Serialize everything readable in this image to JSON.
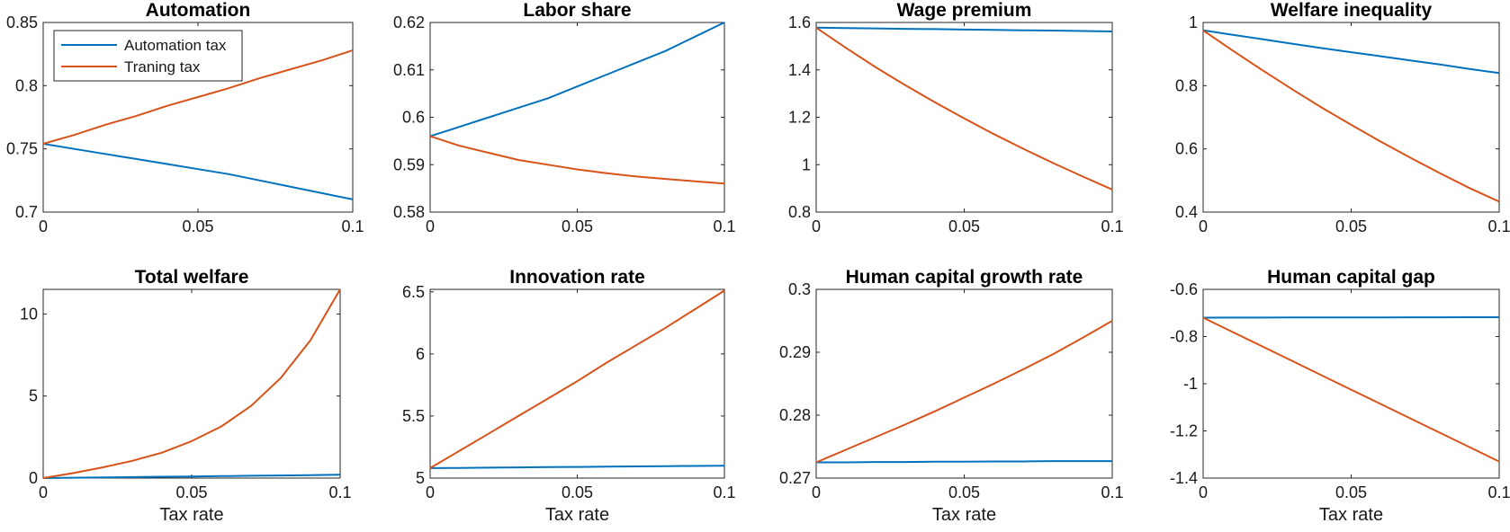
{
  "figure": {
    "legend": {
      "placement": "top-left of first panel",
      "entries": [
        "Automation tax",
        "Traning tax"
      ]
    },
    "series_colors": [
      "#0072BD",
      "#D95319"
    ]
  },
  "chart_data": [
    {
      "type": "line",
      "title": "Automation",
      "xlabel": "",
      "ylabel": "",
      "xlim": [
        0,
        0.1
      ],
      "ylim": [
        0.7,
        0.85
      ],
      "xticks": [
        0,
        0.05,
        0.1
      ],
      "xtick_labels": [
        "0",
        "0.05",
        "0.1"
      ],
      "yticks": [
        0.7,
        0.75,
        0.8,
        0.85
      ],
      "ytick_labels": [
        "0.7",
        "0.75",
        "0.8",
        "0.85"
      ],
      "x": [
        0,
        0.01,
        0.02,
        0.03,
        0.04,
        0.05,
        0.06,
        0.07,
        0.08,
        0.09,
        0.1
      ],
      "series": [
        {
          "name": "Automation tax",
          "color": "#0072BD",
          "values": [
            0.754,
            0.75,
            0.746,
            0.742,
            0.738,
            0.734,
            0.73,
            0.725,
            0.72,
            0.715,
            0.71
          ]
        },
        {
          "name": "Traning tax",
          "color": "#D95319",
          "values": [
            0.754,
            0.761,
            0.769,
            0.776,
            0.784,
            0.791,
            0.798,
            0.806,
            0.813,
            0.82,
            0.828
          ]
        }
      ]
    },
    {
      "type": "line",
      "title": "Labor share",
      "xlabel": "",
      "ylabel": "",
      "xlim": [
        0,
        0.1
      ],
      "ylim": [
        0.58,
        0.62
      ],
      "xticks": [
        0,
        0.05,
        0.1
      ],
      "xtick_labels": [
        "0",
        "0.05",
        "0.1"
      ],
      "yticks": [
        0.58,
        0.59,
        0.6,
        0.61,
        0.62
      ],
      "ytick_labels": [
        "0.58",
        "0.59",
        "0.6",
        "0.61",
        "0.62"
      ],
      "x": [
        0,
        0.01,
        0.02,
        0.03,
        0.04,
        0.05,
        0.06,
        0.07,
        0.08,
        0.09,
        0.1
      ],
      "series": [
        {
          "name": "Automation tax",
          "color": "#0072BD",
          "values": [
            0.596,
            0.598,
            0.6,
            0.602,
            0.604,
            0.6065,
            0.609,
            0.6115,
            0.614,
            0.617,
            0.62
          ]
        },
        {
          "name": "Traning tax",
          "color": "#D95319",
          "values": [
            0.596,
            0.594,
            0.5925,
            0.591,
            0.59,
            0.589,
            0.5882,
            0.5875,
            0.587,
            0.5865,
            0.586
          ]
        }
      ]
    },
    {
      "type": "line",
      "title": "Wage premium",
      "xlabel": "",
      "ylabel": "",
      "xlim": [
        0,
        0.1
      ],
      "ylim": [
        0.8,
        1.6
      ],
      "xticks": [
        0,
        0.05,
        0.1
      ],
      "xtick_labels": [
        "0",
        "0.05",
        "0.1"
      ],
      "yticks": [
        0.8,
        1.0,
        1.2,
        1.4,
        1.6
      ],
      "ytick_labels": [
        "0.8",
        "1",
        "1.2",
        "1.4",
        "1.6"
      ],
      "x": [
        0,
        0.01,
        0.02,
        0.03,
        0.04,
        0.05,
        0.06,
        0.07,
        0.08,
        0.09,
        0.1
      ],
      "series": [
        {
          "name": "Automation tax",
          "color": "#0072BD",
          "values": [
            1.578,
            1.576,
            1.575,
            1.573,
            1.572,
            1.57,
            1.569,
            1.567,
            1.566,
            1.564,
            1.562
          ]
        },
        {
          "name": "Traning tax",
          "color": "#D95319",
          "values": [
            1.578,
            1.493,
            1.412,
            1.336,
            1.264,
            1.195,
            1.129,
            1.067,
            1.007,
            0.95,
            0.895
          ]
        }
      ]
    },
    {
      "type": "line",
      "title": "Welfare inequality",
      "xlabel": "",
      "ylabel": "",
      "xlim": [
        0,
        0.1
      ],
      "ylim": [
        0.4,
        1.0
      ],
      "xticks": [
        0,
        0.05,
        0.1
      ],
      "xtick_labels": [
        "0",
        "0.05",
        "0.1"
      ],
      "yticks": [
        0.4,
        0.6,
        0.8,
        1.0
      ],
      "ytick_labels": [
        "0.4",
        "0.6",
        "0.8",
        "1"
      ],
      "x": [
        0,
        0.01,
        0.02,
        0.03,
        0.04,
        0.05,
        0.06,
        0.07,
        0.08,
        0.09,
        0.1
      ],
      "series": [
        {
          "name": "Automation tax",
          "color": "#0072BD",
          "values": [
            0.975,
            0.961,
            0.947,
            0.933,
            0.919,
            0.906,
            0.893,
            0.88,
            0.867,
            0.853,
            0.84
          ]
        },
        {
          "name": "Traning tax",
          "color": "#D95319",
          "values": [
            0.975,
            0.911,
            0.849,
            0.789,
            0.731,
            0.676,
            0.623,
            0.572,
            0.523,
            0.476,
            0.433
          ]
        }
      ]
    },
    {
      "type": "line",
      "title": "Total welfare",
      "xlabel": "Tax rate",
      "ylabel": "",
      "xlim": [
        0,
        0.1
      ],
      "ylim": [
        0,
        11.5
      ],
      "xticks": [
        0,
        0.05,
        0.1
      ],
      "xtick_labels": [
        "0",
        "0.05",
        "0.1"
      ],
      "yticks": [
        0,
        5,
        10
      ],
      "ytick_labels": [
        "0",
        "5",
        "10"
      ],
      "x": [
        0,
        0.01,
        0.02,
        0.03,
        0.04,
        0.05,
        0.06,
        0.07,
        0.08,
        0.09,
        0.1
      ],
      "series": [
        {
          "name": "Automation tax",
          "color": "#0072BD",
          "values": [
            0,
            0.02,
            0.04,
            0.06,
            0.08,
            0.1,
            0.12,
            0.14,
            0.16,
            0.18,
            0.2
          ]
        },
        {
          "name": "Traning tax",
          "color": "#D95319",
          "values": [
            0,
            0.3,
            0.65,
            1.05,
            1.55,
            2.25,
            3.15,
            4.4,
            6.1,
            8.4,
            11.5
          ]
        }
      ]
    },
    {
      "type": "line",
      "title": "Innovation rate",
      "xlabel": "Tax rate",
      "ylabel": "",
      "xlim": [
        0,
        0.1
      ],
      "ylim": [
        5,
        6.52
      ],
      "xticks": [
        0,
        0.05,
        0.1
      ],
      "xtick_labels": [
        "0",
        "0.05",
        "0.1"
      ],
      "yticks": [
        5,
        5.5,
        6,
        6.5
      ],
      "ytick_labels": [
        "5",
        "5.5",
        "6",
        "6.5"
      ],
      "x": [
        0,
        0.01,
        0.02,
        0.03,
        0.04,
        0.05,
        0.06,
        0.07,
        0.08,
        0.09,
        0.1
      ],
      "series": [
        {
          "name": "Automation tax",
          "color": "#0072BD",
          "values": [
            5.08,
            5.082,
            5.084,
            5.086,
            5.088,
            5.09,
            5.092,
            5.094,
            5.096,
            5.098,
            5.1
          ]
        },
        {
          "name": "Traning tax",
          "color": "#D95319",
          "values": [
            5.08,
            5.22,
            5.36,
            5.5,
            5.64,
            5.78,
            5.93,
            6.07,
            6.21,
            6.36,
            6.51
          ]
        }
      ]
    },
    {
      "type": "line",
      "title": "Human capital growth rate",
      "xlabel": "Tax rate",
      "ylabel": "",
      "xlim": [
        0,
        0.1
      ],
      "ylim": [
        0.27,
        0.3
      ],
      "xticks": [
        0,
        0.05,
        0.1
      ],
      "xtick_labels": [
        "0",
        "0.05",
        "0.1"
      ],
      "yticks": [
        0.27,
        0.28,
        0.29,
        0.3
      ],
      "ytick_labels": [
        "0.27",
        "0.28",
        "0.29",
        "0.3"
      ],
      "x": [
        0,
        0.01,
        0.02,
        0.03,
        0.04,
        0.05,
        0.06,
        0.07,
        0.08,
        0.09,
        0.1
      ],
      "series": [
        {
          "name": "Automation tax",
          "color": "#0072BD",
          "values": [
            0.2725,
            0.2725,
            0.27255,
            0.27255,
            0.2726,
            0.2726,
            0.27265,
            0.27265,
            0.2727,
            0.2727,
            0.2727
          ]
        },
        {
          "name": "Traning tax",
          "color": "#D95319",
          "values": [
            0.2725,
            0.2745,
            0.2765,
            0.2785,
            0.2806,
            0.2828,
            0.285,
            0.2873,
            0.2897,
            0.2923,
            0.295
          ]
        }
      ]
    },
    {
      "type": "line",
      "title": "Human capital gap",
      "xlabel": "Tax rate",
      "ylabel": "",
      "xlim": [
        0,
        0.1
      ],
      "ylim": [
        -1.4,
        -0.6
      ],
      "xticks": [
        0,
        0.05,
        0.1
      ],
      "xtick_labels": [
        "0",
        "0.05",
        "0.1"
      ],
      "yticks": [
        -1.4,
        -1.2,
        -1.0,
        -0.8,
        -0.6
      ],
      "ytick_labels": [
        "-1.4",
        "-1.2",
        "-1",
        "-0.8",
        "-0.6"
      ],
      "x": [
        0,
        0.01,
        0.02,
        0.03,
        0.04,
        0.05,
        0.06,
        0.07,
        0.08,
        0.09,
        0.1
      ],
      "series": [
        {
          "name": "Automation tax",
          "color": "#0072BD",
          "values": [
            -0.72,
            -0.7198,
            -0.7196,
            -0.7194,
            -0.7192,
            -0.719,
            -0.7188,
            -0.7186,
            -0.7184,
            -0.7182,
            -0.718
          ]
        },
        {
          "name": "Traning tax",
          "color": "#D95319",
          "values": [
            -0.72,
            -0.781,
            -0.842,
            -0.903,
            -0.964,
            -1.025,
            -1.086,
            -1.147,
            -1.208,
            -1.269,
            -1.33
          ]
        }
      ]
    }
  ]
}
